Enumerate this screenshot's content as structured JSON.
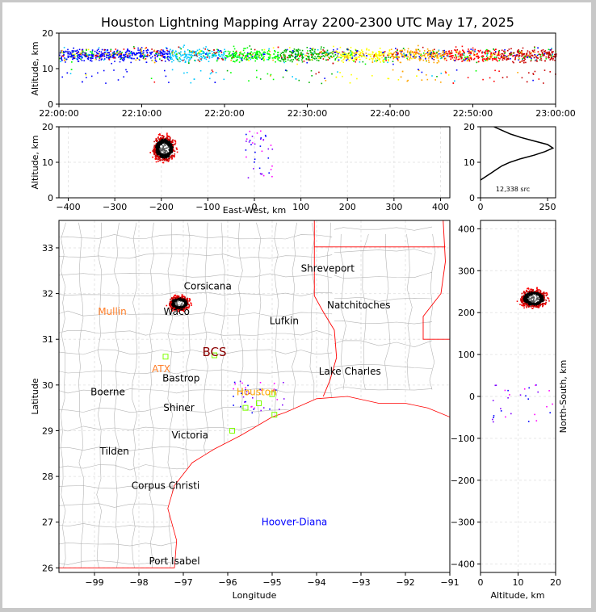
{
  "title": "Houston Lightning Mapping Array 2200-2300 UTC May 17, 2025",
  "colors": {
    "frame": "#c8c8c8",
    "state_border": "#ff0000",
    "county_border": "#b4b4b4",
    "grid": "#e6e6e6",
    "station": "#7fff00"
  },
  "chart_data": [
    {
      "type": "scatter",
      "panel": "altitude-vs-time",
      "ylabel": "Altitude, km",
      "xlabel": "",
      "ylim": [
        0,
        20
      ],
      "yticks": [
        "0",
        "10",
        "20"
      ],
      "xticks": [
        "22:00:00",
        "22:10:00",
        "22:20:00",
        "22:30:00",
        "22:40:00",
        "22:50:00",
        "23:00:00"
      ],
      "x_range_minutes": [
        0,
        60
      ],
      "band_altitude_km": [
        8,
        20
      ],
      "band_core_km": 14
    },
    {
      "type": "scatter",
      "panel": "altitude-vs-east-west",
      "ylabel": "Altitude, km",
      "xlabel": "East-West, km",
      "xlim": [
        -420,
        420
      ],
      "ylim": [
        0,
        20
      ],
      "xticks": [
        "−400",
        "−300",
        "−200",
        "−100",
        "0",
        "100",
        "200",
        "300",
        "400"
      ],
      "yticks": [
        "0",
        "10",
        "20"
      ],
      "storm_center": {
        "x": -195,
        "alt": 14
      }
    },
    {
      "type": "line",
      "panel": "altitude-histogram",
      "xlabel": "",
      "ylabel": "",
      "xlim": [
        0,
        280
      ],
      "ylim": [
        0,
        20
      ],
      "xticks": [
        "0",
        "250"
      ],
      "yticks": [
        "0",
        "10",
        "20"
      ],
      "count_label": "12,338 src",
      "profile": [
        [
          0,
          5
        ],
        [
          20,
          6
        ],
        [
          40,
          7
        ],
        [
          60,
          8
        ],
        [
          80,
          9
        ],
        [
          110,
          10
        ],
        [
          150,
          11
        ],
        [
          200,
          12
        ],
        [
          240,
          13
        ],
        [
          270,
          14
        ],
        [
          250,
          15
        ],
        [
          200,
          16
        ],
        [
          150,
          17
        ],
        [
          110,
          18
        ],
        [
          80,
          19
        ],
        [
          50,
          20
        ]
      ]
    },
    {
      "type": "scatter",
      "panel": "plan-view-map",
      "xlabel": "Longitude",
      "ylabel": "Latitude",
      "xlim": [
        -99.8,
        -91.0
      ],
      "ylim": [
        25.9,
        33.6
      ],
      "xticks": [
        "−99",
        "−98",
        "−97",
        "−96",
        "−95",
        "−94",
        "−93",
        "−92",
        "−91"
      ],
      "yticks": [
        "26",
        "27",
        "28",
        "29",
        "30",
        "31",
        "32",
        "33"
      ],
      "storm_center": {
        "lon": -97.1,
        "lat": 31.8
      },
      "cities": [
        {
          "name": "Corsicana",
          "lon": -96.45,
          "lat": 32.16,
          "color": "#000000"
        },
        {
          "name": "Shreveport",
          "lon": -93.75,
          "lat": 32.55,
          "color": "#000000"
        },
        {
          "name": "Natchitoches",
          "lon": -93.05,
          "lat": 31.75,
          "color": "#000000"
        },
        {
          "name": "Lufkin",
          "lon": -94.73,
          "lat": 31.4,
          "color": "#000000"
        },
        {
          "name": "Mullin",
          "lon": -98.6,
          "lat": 31.6,
          "color": "#ff7f2a"
        },
        {
          "name": "Waco",
          "lon": -97.15,
          "lat": 31.6,
          "color": "#000000"
        },
        {
          "name": "BCS",
          "lon": -96.3,
          "lat": 30.7,
          "color": "#8b0000"
        },
        {
          "name": "ATX",
          "lon": -97.5,
          "lat": 30.35,
          "color": "#ff7f2a"
        },
        {
          "name": "Bastrop",
          "lon": -97.05,
          "lat": 30.15,
          "color": "#000000"
        },
        {
          "name": "Houston",
          "lon": -95.35,
          "lat": 29.85,
          "color": "#ffa500"
        },
        {
          "name": "Lake Charles",
          "lon": -93.25,
          "lat": 30.3,
          "color": "#000000"
        },
        {
          "name": "Boerne",
          "lon": -98.7,
          "lat": 29.85,
          "color": "#000000"
        },
        {
          "name": "Shiner",
          "lon": -97.1,
          "lat": 29.5,
          "color": "#000000"
        },
        {
          "name": "Victoria",
          "lon": -96.85,
          "lat": 28.9,
          "color": "#000000"
        },
        {
          "name": "Tilden",
          "lon": -98.55,
          "lat": 28.55,
          "color": "#000000"
        },
        {
          "name": "Corpus Christi",
          "lon": -97.4,
          "lat": 27.8,
          "color": "#000000"
        },
        {
          "name": "Hoover-Diana",
          "lon": -94.5,
          "lat": 27.0,
          "color": "#0000ff"
        },
        {
          "name": "Port Isabel",
          "lon": -97.2,
          "lat": 26.15,
          "color": "#000000"
        }
      ],
      "stations": [
        {
          "lon": -97.4,
          "lat": 30.62
        },
        {
          "lon": -96.3,
          "lat": 30.65
        },
        {
          "lon": -95.3,
          "lat": 29.6
        },
        {
          "lon": -95.0,
          "lat": 29.8
        },
        {
          "lon": -94.95,
          "lat": 29.35
        },
        {
          "lon": -95.9,
          "lat": 29.0
        },
        {
          "lon": -95.6,
          "lat": 29.5
        }
      ]
    },
    {
      "type": "scatter",
      "panel": "north-south-vs-altitude",
      "xlabel": "Altitude, km",
      "ylabel": "North-South, km",
      "xlim": [
        0,
        20
      ],
      "ylim": [
        -420,
        420
      ],
      "xticks": [
        "0",
        "10",
        "20"
      ],
      "yticks": [
        "−400",
        "−300",
        "−200",
        "−100",
        "0",
        "100",
        "200",
        "300",
        "400"
      ],
      "storm_center": {
        "alt": 14,
        "y": 235
      }
    }
  ]
}
